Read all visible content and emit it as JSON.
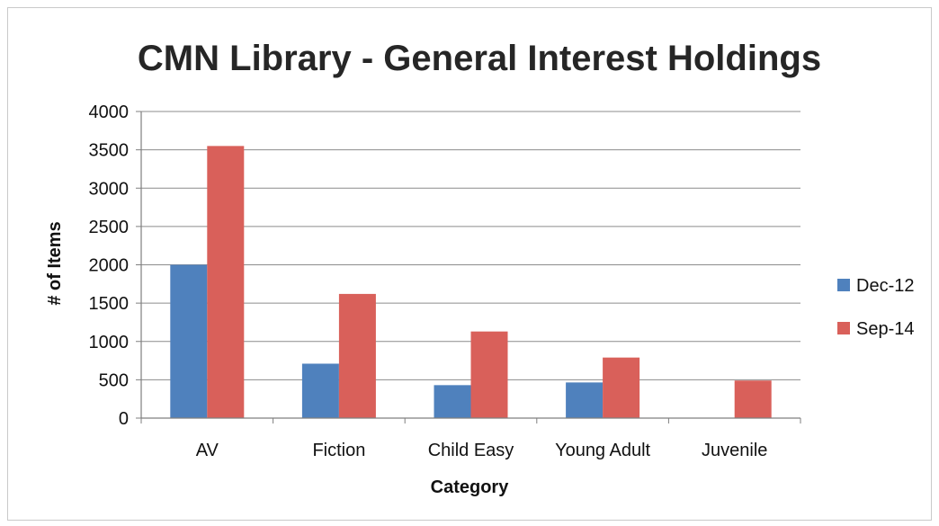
{
  "chart_data": {
    "type": "bar",
    "title": "CMN Library - General Interest Holdings",
    "xlabel": "Category",
    "ylabel": "# of Items",
    "categories": [
      "AV",
      "Fiction",
      "Child Easy",
      "Young Adult",
      "Juvenile"
    ],
    "series": [
      {
        "name": "Dec-12",
        "color": "#4f81bd",
        "values": [
          2000,
          710,
          430,
          465,
          0
        ]
      },
      {
        "name": "Sep-14",
        "color": "#d9605a",
        "values": [
          3550,
          1620,
          1130,
          790,
          490
        ]
      }
    ],
    "ylim": [
      0,
      4000
    ],
    "yticks": [
      0,
      500,
      1000,
      1500,
      2000,
      2500,
      3000,
      3500,
      4000
    ],
    "grid": true,
    "legend_position": "right"
  }
}
